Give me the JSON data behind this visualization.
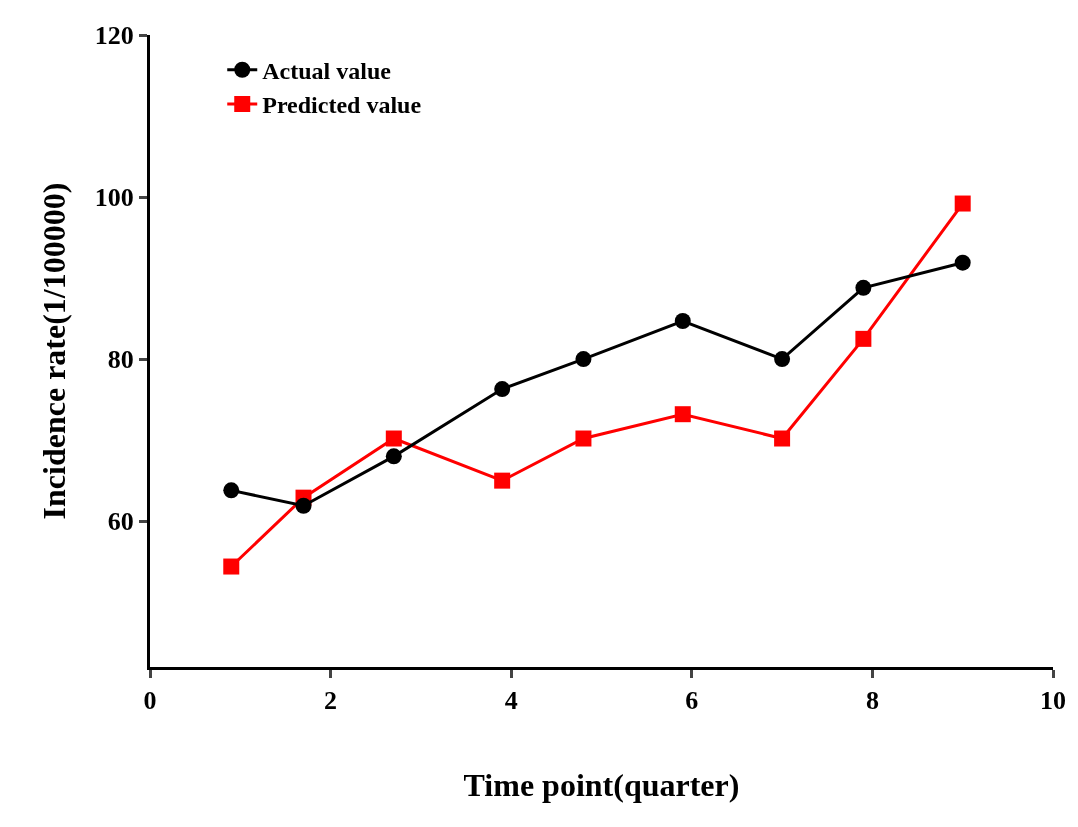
{
  "chart_data": {
    "type": "line",
    "xlabel": "Time point(quarter)",
    "ylabel": "Incidence rate(1/100000)",
    "xlim": [
      0,
      10
    ],
    "xticks": [
      0,
      2,
      4,
      6,
      8,
      10
    ],
    "ylim": [
      42,
      120
    ],
    "yticks": [
      60,
      80,
      100,
      120
    ],
    "grid": false,
    "legend": "top left",
    "line_style": "solid",
    "series": [
      {
        "name": "Actual value",
        "color": "#000000",
        "marker": "circle",
        "x": [
          0.9,
          1.7,
          2.7,
          3.9,
          4.8,
          5.9,
          7.0,
          7.9,
          9.0
        ],
        "values": [
          63.8,
          61.9,
          68.0,
          76.3,
          80.0,
          84.7,
          80.0,
          88.8,
          91.9
        ]
      },
      {
        "name": "Predicted value",
        "color": "#ff0000",
        "marker": "square",
        "x": [
          0.9,
          1.7,
          2.7,
          3.9,
          4.8,
          5.9,
          7.0,
          7.9,
          9.0
        ],
        "values": [
          54.4,
          62.9,
          70.2,
          65.0,
          70.2,
          73.2,
          70.2,
          82.5,
          99.2
        ]
      }
    ]
  }
}
